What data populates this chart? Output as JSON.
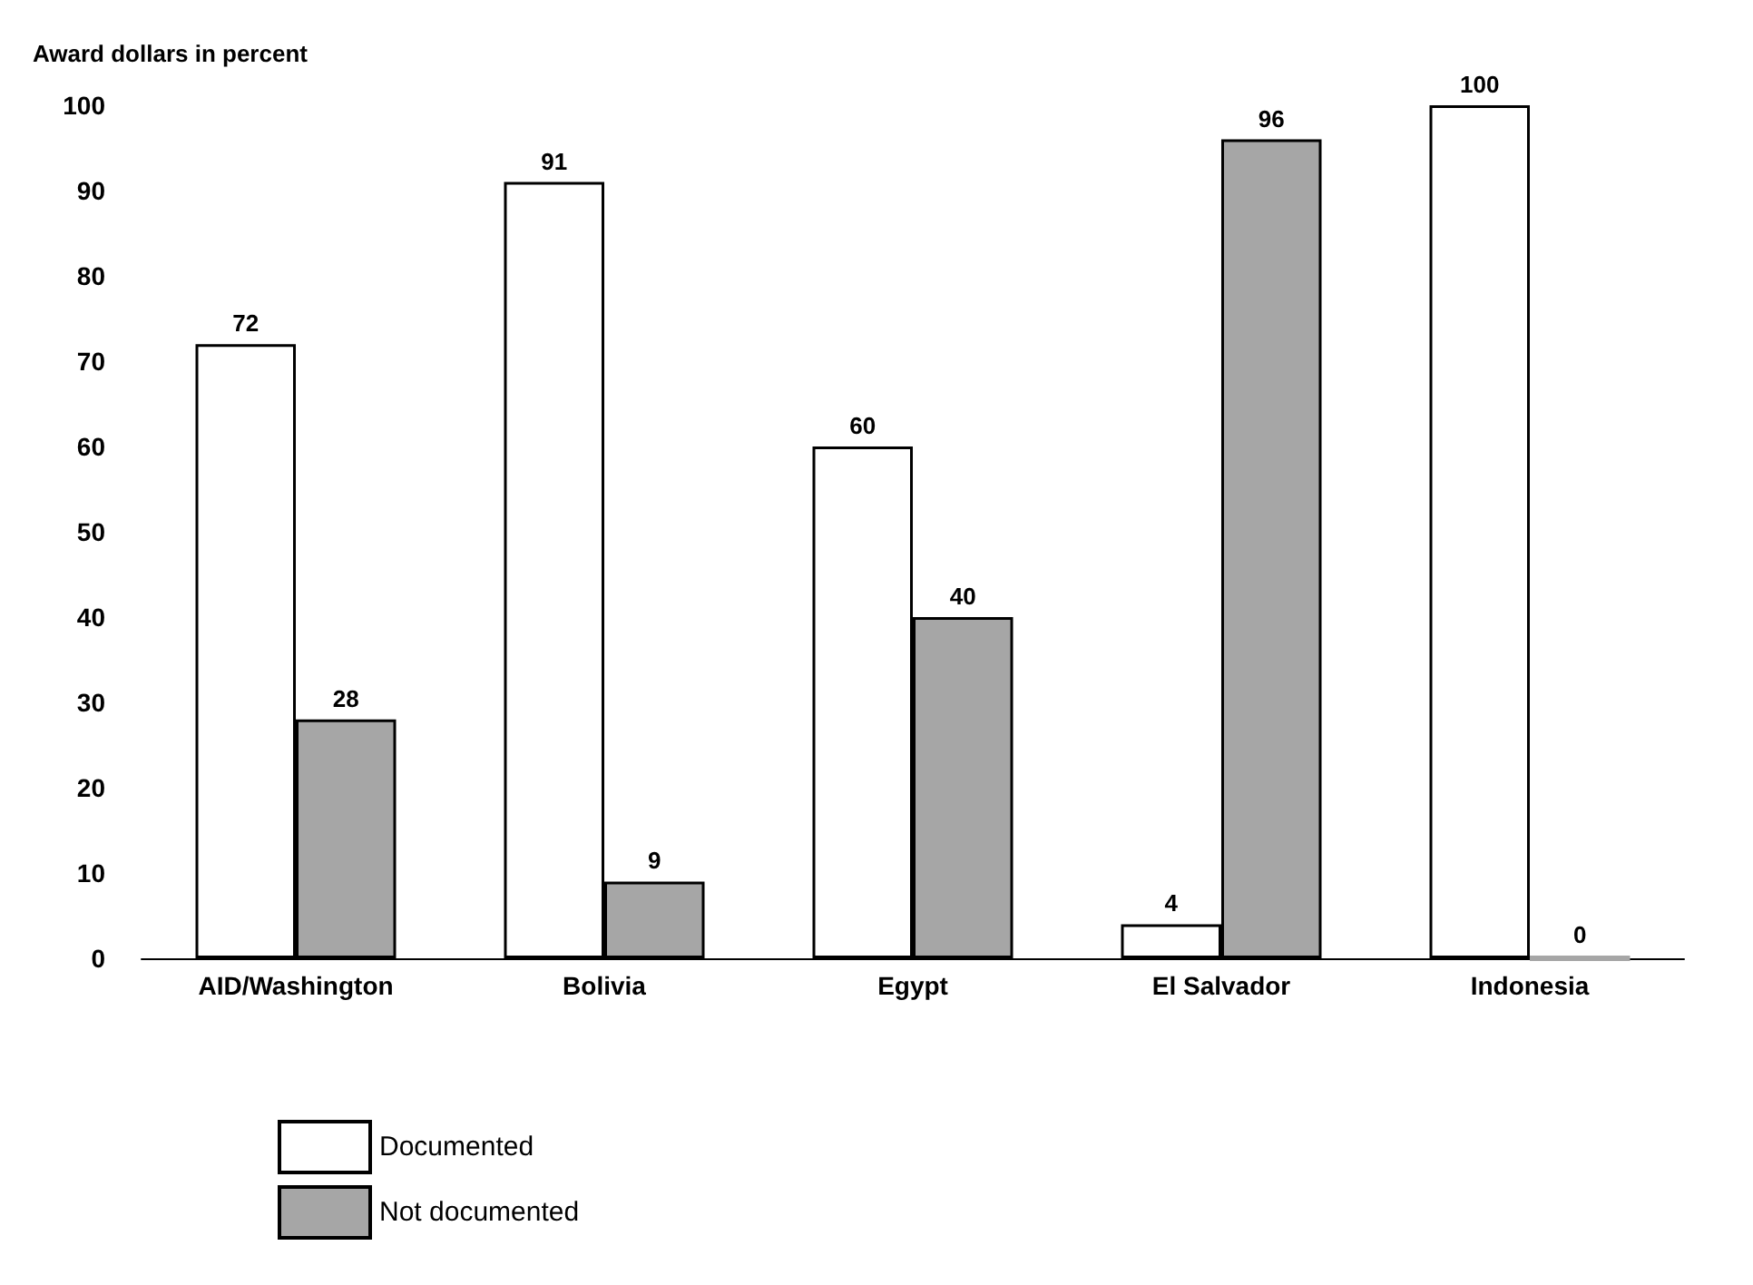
{
  "chart_data": {
    "type": "bar",
    "ylabel": "Award dollars in percent",
    "categories": [
      "AID/Washington",
      "Bolivia",
      "Egypt",
      "El Salvador",
      "Indonesia"
    ],
    "series": [
      {
        "name": "Documented",
        "color": "#ffffff",
        "values": [
          72,
          91,
          60,
          4,
          100
        ]
      },
      {
        "name": "Not documented",
        "color": "#a6a6a6",
        "values": [
          28,
          9,
          40,
          96,
          0
        ]
      }
    ],
    "ylim": [
      0,
      100
    ],
    "yticks": [
      0,
      10,
      20,
      30,
      40,
      50,
      60,
      70,
      80,
      90,
      100
    ],
    "grid": false,
    "legend": "bottom left",
    "data_labels": true
  }
}
